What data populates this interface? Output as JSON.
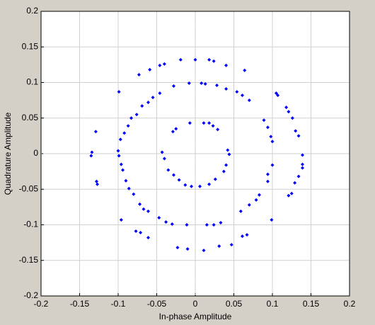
{
  "chart_data": {
    "type": "scatter",
    "x_label": "In-phase Amplitude",
    "y_label": "Quadrature Amplitude",
    "color": "#0000ff",
    "grid": true,
    "xlim": [
      -0.2,
      0.2
    ],
    "ylim": [
      -0.2,
      0.2
    ],
    "xticks": [
      -0.2,
      -0.15,
      -0.1,
      -0.05,
      0,
      0.05,
      0.1,
      0.15,
      0.2
    ],
    "yticks": [
      -0.2,
      -0.15,
      -0.1,
      -0.05,
      0,
      0.05,
      0.1,
      0.15,
      0.2
    ],
    "x": [
      0,
      0.018,
      0.024,
      -0.019,
      -0.04,
      -0.046,
      -0.059,
      -0.073,
      -0.099,
      0.04,
      0.064,
      0.105,
      0.107,
      0.118,
      0.121,
      0.126,
      0.13,
      0.134,
      0.139,
      0.139,
      0.139,
      0.134,
      0.129,
      0.125,
      0.121,
      0.099,
      0.067,
      0.061,
      0.047,
      0.031,
      0.011,
      -0.01,
      -0.023,
      -0.061,
      -0.071,
      -0.077,
      -0.096,
      -0.127,
      -0.128,
      -0.135,
      -0.134,
      -0.129,
      0.008,
      0.013,
      -0.008,
      -0.028,
      -0.046,
      -0.055,
      -0.061,
      -0.069,
      -0.076,
      -0.083,
      -0.087,
      -0.092,
      -0.097,
      -0.1,
      -0.099,
      -0.096,
      -0.094,
      -0.09,
      -0.086,
      -0.08,
      -0.072,
      -0.067,
      -0.061,
      -0.047,
      -0.038,
      -0.03,
      -0.011,
      0.015,
      0.024,
      0.033,
      0.059,
      0.07,
      0.079,
      0.083,
      0.094,
      0.094,
      0.1,
      0.1,
      0.098,
      0.094,
      0.089,
      0.07,
      0.061,
      0.054,
      0.04,
      0.028,
      0.018,
      0.011,
      -0.007,
      -0.025,
      -0.029,
      0.023,
      0.029,
      0.042,
      0.044,
      0.04,
      0.037,
      0.026,
      0.018,
      0.006,
      -0.005,
      -0.013,
      -0.021,
      -0.028,
      -0.035,
      -0.04,
      -0.043
    ],
    "values": [
      0.132,
      0.132,
      0.13,
      0.132,
      0.126,
      0.124,
      0.118,
      0.111,
      0.087,
      0.124,
      0.117,
      0.085,
      0.082,
      0.065,
      0.059,
      0.05,
      0.032,
      0.025,
      -0.002,
      -0.015,
      -0.02,
      -0.032,
      -0.041,
      -0.056,
      -0.059,
      -0.093,
      -0.114,
      -0.116,
      -0.128,
      -0.13,
      -0.136,
      -0.134,
      -0.132,
      -0.118,
      -0.111,
      -0.109,
      -0.093,
      -0.043,
      -0.039,
      -0.003,
      0.002,
      0.031,
      0.099,
      0.098,
      0.099,
      0.095,
      0.085,
      0.079,
      0.072,
      0.067,
      0.055,
      0.05,
      0.039,
      0.029,
      0.02,
      0.004,
      -0.003,
      -0.015,
      -0.023,
      -0.038,
      -0.049,
      -0.057,
      -0.071,
      -0.078,
      -0.081,
      -0.09,
      -0.096,
      -0.099,
      -0.1,
      -0.1,
      -0.1,
      -0.097,
      -0.081,
      -0.072,
      -0.065,
      -0.058,
      -0.039,
      -0.029,
      -0.016,
      0.017,
      0.024,
      0.037,
      0.047,
      0.075,
      0.082,
      0.087,
      0.091,
      0.096,
      0.043,
      0.043,
      0.043,
      0.035,
      0.031,
      0.039,
      0.034,
      0.005,
      -0.001,
      -0.016,
      -0.025,
      -0.036,
      -0.043,
      -0.046,
      -0.046,
      -0.044,
      -0.037,
      -0.03,
      -0.023,
      -0.007,
      0.002
    ]
  }
}
